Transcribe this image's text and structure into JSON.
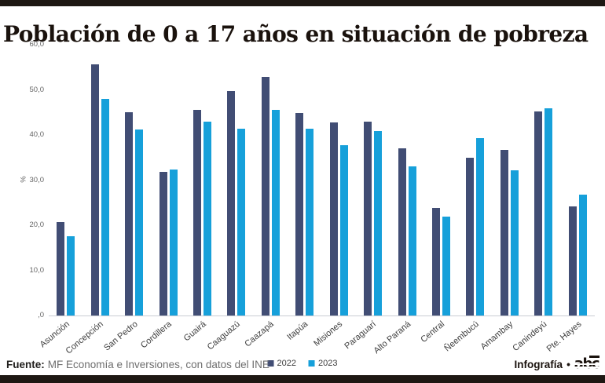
{
  "title": "Población de 0 a 17 años en situación de pobreza",
  "chart_data": {
    "type": "bar",
    "title": "Población de 0 a 17 años en situación de pobreza",
    "categories": [
      "Asunción",
      "Concepción",
      "San Pedro",
      "Cordillera",
      "Guairá",
      "Caaguazú",
      "Caazapá",
      "Itapúa",
      "Misiones",
      "Paraguarí",
      "Alto Paraná",
      "Central",
      "Ñeembucú",
      "Amambay",
      "Canindeyú",
      "Pte. Hayes"
    ],
    "series": [
      {
        "name": "2022",
        "color": "#414d74",
        "values": [
          20.7,
          55.6,
          45.1,
          31.8,
          45.6,
          49.7,
          52.9,
          44.8,
          42.8,
          43.0,
          37.1,
          23.9,
          34.9,
          36.7,
          45.3,
          24.2
        ]
      },
      {
        "name": "2023",
        "color": "#16a0da",
        "values": [
          17.6,
          48.0,
          41.2,
          32.4,
          43.0,
          41.4,
          45.6,
          41.4,
          37.7,
          40.8,
          33.1,
          21.9,
          39.4,
          32.2,
          46.0,
          26.8
        ]
      }
    ],
    "xlabel": "",
    "ylabel": "%",
    "ylim": [
      0,
      60
    ],
    "ytick_step": 10,
    "yticks": [
      "60,0",
      "50,0",
      "40,0",
      "30,0",
      "20,0",
      "10,0",
      ",0"
    ],
    "grid": false,
    "legend_position": "bottom-center"
  },
  "footer": {
    "source_label": "Fuente:",
    "source_text": "MF Economía e Inversiones, con datos del INE",
    "credit_label": "Infografía",
    "bullet": "•",
    "logo_text": "abc"
  }
}
